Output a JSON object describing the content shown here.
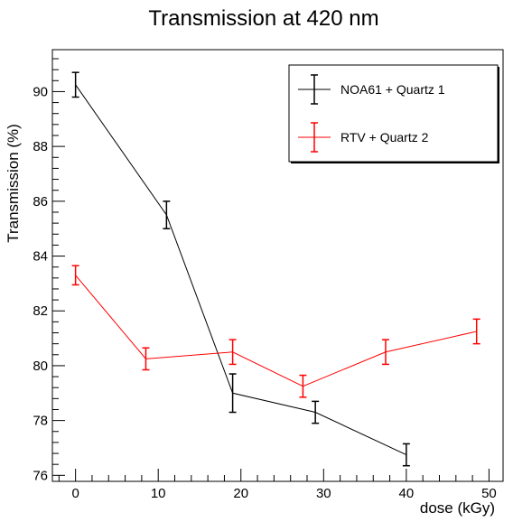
{
  "chart_data": {
    "type": "line",
    "title": "Transmission at 420 nm",
    "xlabel": "dose (kGy)",
    "ylabel": "Transmission (%)",
    "xlim": [
      -2.8,
      51.7
    ],
    "ylim": [
      75.78,
      91.53
    ],
    "x_ticks": [
      0,
      10,
      20,
      30,
      40,
      50
    ],
    "y_ticks": [
      76,
      78,
      80,
      82,
      84,
      86,
      88,
      90
    ],
    "grid": false,
    "legend_position": "top-right",
    "series": [
      {
        "name": "NOA61 + Quartz 1",
        "color": "#000000",
        "x": [
          0,
          11,
          19,
          29,
          40
        ],
        "y": [
          90.25,
          85.5,
          79.0,
          78.3,
          76.75
        ],
        "yerr": [
          0.45,
          0.5,
          0.7,
          0.4,
          0.4
        ]
      },
      {
        "name": "RTV + Quartz 2",
        "color": "#ff0000",
        "x": [
          0,
          8.5,
          19,
          27.5,
          37.5,
          48.5
        ],
        "y": [
          83.3,
          80.25,
          80.5,
          79.25,
          80.5,
          81.25
        ],
        "yerr": [
          0.35,
          0.4,
          0.45,
          0.4,
          0.45,
          0.45
        ]
      }
    ]
  }
}
